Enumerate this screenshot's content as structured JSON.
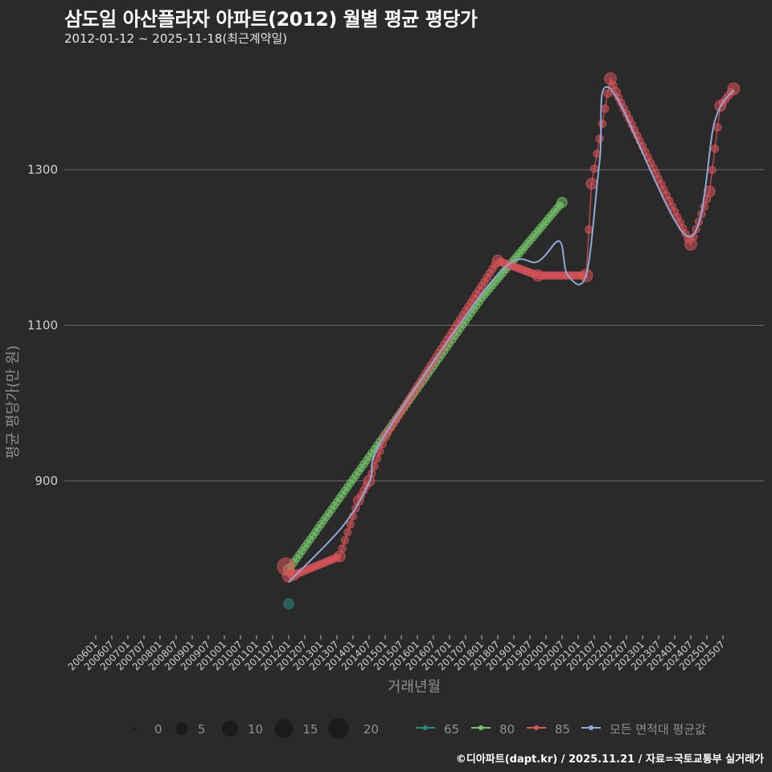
{
  "header": {
    "title": "삼도일 아산플라자 아파트(2012) 월별 평균 평당가",
    "subtitle": "2012-01-12 ~ 2025-11-18(최근계약일)"
  },
  "footer": {
    "credit": "©디아파트(dapt.kr) / 2025.11.21 / 자료=국토교통부 실거래가"
  },
  "colors": {
    "background": "#2b2a2a",
    "grid": "#6e6e6e",
    "s65": "#2a8a7e",
    "s80": "#74c26a",
    "s85": "#d9545a",
    "avg": "#8fa9d6"
  },
  "chart_data": {
    "type": "line",
    "title": "삼도일 아산플라자 아파트(2012) 월별 평균 평당가",
    "subtitle": "2012-01-12 ~ 2025-11-18(최근계약일)",
    "xlabel": "거래년월",
    "ylabel": "평균 평당가(만 원)",
    "ylim": [
      705,
      1440
    ],
    "yticks": [
      900,
      1100,
      1300
    ],
    "grid": true,
    "x_ticks": [
      "200601",
      "200607",
      "200701",
      "200707",
      "200801",
      "200807",
      "200901",
      "200907",
      "201001",
      "201007",
      "201101",
      "201107",
      "201201",
      "201207",
      "201301",
      "201307",
      "201401",
      "201407",
      "201501",
      "201507",
      "201601",
      "201607",
      "201701",
      "201707",
      "201801",
      "201807",
      "201901",
      "201907",
      "202001",
      "202007",
      "202101",
      "202107",
      "202201",
      "202207",
      "202301",
      "202307",
      "202401",
      "202407",
      "202501",
      "202507"
    ],
    "size_legend": {
      "title": "",
      "values": [
        0,
        5,
        10,
        15,
        20
      ]
    },
    "legend": [
      "65",
      "80",
      "85",
      "모든 면적대 평균값"
    ],
    "legend_position": "bottom",
    "series": [
      {
        "name": "65",
        "color": "#2a8a7e",
        "points": [
          [
            "2012-01",
            742,
            3
          ]
        ]
      },
      {
        "name": "80",
        "color": "#74c26a",
        "points": [
          [
            "2012-01",
            786,
            4
          ],
          [
            "2015-01",
            960,
            1
          ],
          [
            "2018-01",
            1135,
            1
          ],
          [
            "2020-07",
            1258,
            3
          ]
        ]
      },
      {
        "name": "85",
        "color": "#d9545a",
        "points": [
          [
            "2011-12",
            790,
            14
          ],
          [
            "2012-01",
            778,
            6
          ],
          [
            "2012-03",
            779,
            3
          ],
          [
            "2013-08",
            803,
            4
          ],
          [
            "2014-03",
            875,
            3
          ],
          [
            "2014-07",
            900,
            4
          ],
          [
            "2015-01",
            957,
            2
          ],
          [
            "2018-07",
            1183,
            4
          ],
          [
            "2019-10",
            1164,
            4
          ],
          [
            "2021-04",
            1164,
            6
          ],
          [
            "2021-06",
            1282,
            4
          ],
          [
            "2022-01",
            1417,
            5
          ],
          [
            "2022-03",
            1400,
            2
          ],
          [
            "2024-07",
            1204,
            5
          ],
          [
            "2025-02",
            1272,
            4
          ],
          [
            "2025-06",
            1382,
            4
          ],
          [
            "2025-11",
            1404,
            5
          ]
        ]
      },
      {
        "name": "모든 면적대 평균값",
        "color": "#8fa9d6",
        "points": [
          [
            "2012-01",
            770
          ],
          [
            "2013-09",
            841
          ],
          [
            "2014-07",
            898
          ],
          [
            "2015-01",
            960
          ],
          [
            "2018-07",
            1165
          ],
          [
            "2019-10",
            1182
          ],
          [
            "2020-06",
            1208
          ],
          [
            "2020-09",
            1165
          ],
          [
            "2021-04",
            1165
          ],
          [
            "2021-09",
            1311
          ],
          [
            "2022-01",
            1404
          ],
          [
            "2024-06",
            1214
          ],
          [
            "2025-04",
            1363
          ],
          [
            "2025-11",
            1402
          ]
        ]
      }
    ]
  }
}
